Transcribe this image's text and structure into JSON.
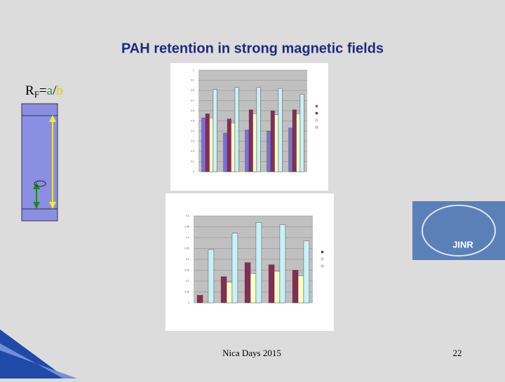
{
  "slide": {
    "title": "PAH retention in strong magnetic fields",
    "formula": [
      "R",
      "F",
      "=",
      "a",
      "/",
      "b"
    ],
    "footer": "Nica Days 2015",
    "page_number": "22",
    "logo_text": "JINR"
  },
  "chart_data": [
    {
      "type": "bar",
      "categories": [
        null,
        null,
        null,
        null,
        null
      ],
      "series": [
        {
          "color": "#7b6fd6",
          "values": [
            0.53,
            0.38,
            0.41,
            0.4,
            0.43
          ]
        },
        {
          "color": "#8b2a55",
          "values": [
            0.57,
            0.52,
            0.61,
            0.6,
            0.61
          ]
        },
        {
          "color": "#fdfcc8",
          "values": [
            0.53,
            0.48,
            0.57,
            0.56,
            0.57
          ]
        },
        {
          "color": "#c9f2f6",
          "values": [
            0.81,
            0.83,
            0.83,
            0.82,
            0.76
          ]
        }
      ],
      "ylim": [
        0,
        1
      ],
      "yticks": [
        0,
        0.1,
        0.2,
        0.3,
        0.4,
        0.5,
        0.6,
        0.7,
        0.8,
        0.9,
        1
      ],
      "grid": true
    },
    {
      "type": "bar",
      "categories": [
        null,
        null,
        null,
        null,
        null
      ],
      "series": [
        {
          "color": "#8b2a55",
          "values": [
            0.035,
            0.12,
            0.185,
            0.175,
            0.15
          ]
        },
        {
          "color": "#fdfcc8",
          "values": [
            0.005,
            0.095,
            0.135,
            0.145,
            0.125
          ]
        },
        {
          "color": "#c9f2f6",
          "values": [
            0.245,
            0.32,
            0.37,
            0.36,
            0.285
          ]
        }
      ],
      "ylim": [
        0,
        0.4
      ],
      "yticks": [
        0,
        0.05,
        0.1,
        0.15,
        0.2,
        0.25,
        0.3,
        0.35,
        0.4
      ],
      "grid": true
    }
  ]
}
